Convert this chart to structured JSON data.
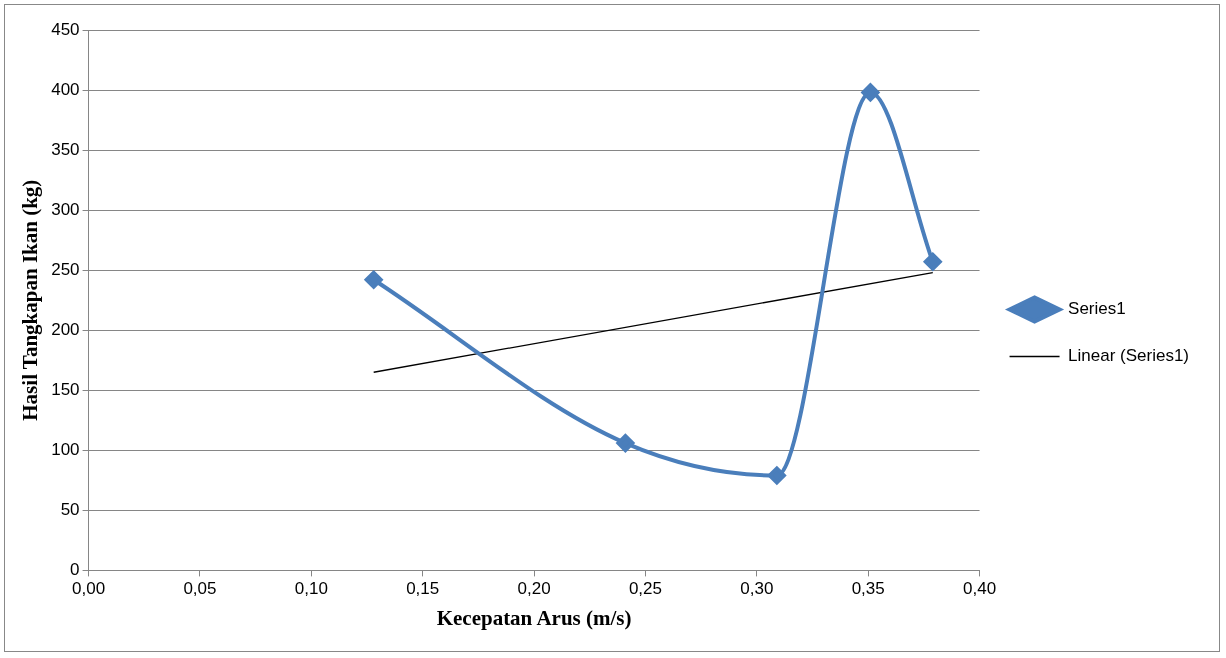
{
  "chart_data": {
    "type": "line",
    "xlabel": "Kecepatan Arus (m/s)",
    "ylabel": "Hasil Tangkapan Ikan (kg)",
    "xlim": [
      0,
      0.4
    ],
    "xticks": [
      {
        "value": 0,
        "label": "0,00"
      },
      {
        "value": 0.05,
        "label": "0,05"
      },
      {
        "value": 0.1,
        "label": "0,10"
      },
      {
        "value": 0.15,
        "label": "0,15"
      },
      {
        "value": 0.2,
        "label": "0,20"
      },
      {
        "value": 0.25,
        "label": "0,25"
      },
      {
        "value": 0.3,
        "label": "0,30"
      },
      {
        "value": 0.35,
        "label": "0,35"
      },
      {
        "value": 0.4,
        "label": "0,40"
      }
    ],
    "ylim": [
      0,
      450
    ],
    "yticks": [
      0,
      50,
      100,
      150,
      200,
      250,
      300,
      350,
      400,
      450
    ],
    "grid": "y",
    "legend": "right",
    "marker": "diamond",
    "line_style": "solid",
    "series": [
      {
        "name": "Series1",
        "color": "#4a7ebb",
        "x": [
          0.128,
          0.241,
          0.309,
          0.351,
          0.379
        ],
        "values": [
          242,
          106,
          79,
          398,
          257
        ]
      },
      {
        "name": "Linear (Series1)",
        "type": "line",
        "marker": "none",
        "color": "#000000",
        "x": [
          0.128,
          0.379
        ],
        "values": [
          165,
          248
        ]
      }
    ]
  }
}
